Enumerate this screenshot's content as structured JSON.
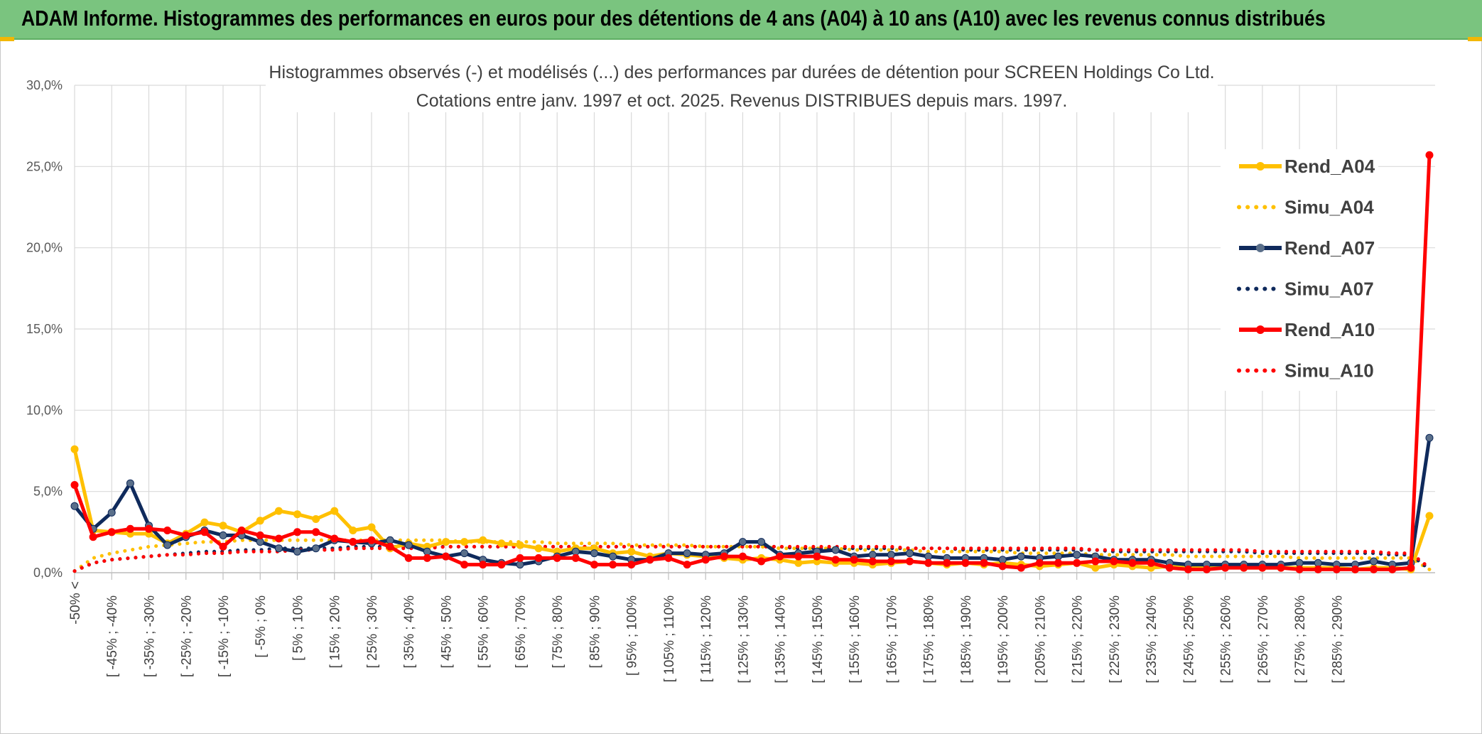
{
  "header": {
    "title": "ADAM Informe. Histogrammes des performances en euros pour des détentions de 4 ans (A04) à 10 ans (A10) avec les revenus connus distribués"
  },
  "colors": {
    "banner": "#7ac47f",
    "A04": "#ffc000",
    "A07": "#0f2a5c",
    "A07_marker": "#5a6f8a",
    "A10": "#ff0000"
  },
  "chart_data": {
    "type": "line",
    "title_line1": "Histogrammes observés (-) et modélisés (...) des performances par durées de détention pour SCREEN Holdings Co Ltd.",
    "title_line2": "Cotations entre janv. 1997 et oct. 2025. Revenus DISTRIBUES depuis mars. 1997.",
    "ylim": [
      0,
      30
    ],
    "yticks": [
      "0,0%",
      "5,0%",
      "10,0%",
      "15,0%",
      "20,0%",
      "25,0%",
      "30,0%"
    ],
    "grid": true,
    "legend_position": "right",
    "x_labels": [
      "-50% <",
      "[ -45% ; -40%",
      "[ -35% ; -30%",
      "[ -25% ; -20%",
      "[ -15% ; -10%",
      "[ -5% ; 0%",
      "[ 5% ; 10%",
      "[ 15% ; 20%",
      "[ 25% ; 30%",
      "[ 35% ; 40%",
      "[ 45% ; 50%",
      "[ 55% ; 60%",
      "[ 65% ; 70%",
      "[ 75% ; 80%",
      "[ 85% ; 90%",
      "[ 95% ; 100%",
      "[ 105% ; 110%",
      "[ 115% ; 120%",
      "[ 125% ; 130%",
      "[ 135% ; 140%",
      "[ 145% ; 150%",
      "[ 155% ; 160%",
      "[ 165% ; 170%",
      "[ 175% ; 180%",
      "[ 185% ; 190%",
      "[ 195% ; 200%",
      "[ 205% ; 210%",
      "[ 215% ; 220%",
      "[ 225% ; 230%",
      "[ 235% ; 240%",
      "[ 245% ; 250%",
      "[ 255% ; 260%",
      "[ 265% ; 270%",
      "[ 275% ; 280%",
      "[ 285% ; 290%"
    ],
    "series": [
      {
        "name": "Rend_A04",
        "style": "solid",
        "color": "#ffc000",
        "values": [
          7.6,
          2.6,
          2.5,
          2.4,
          2.4,
          1.8,
          2.4,
          3.1,
          2.9,
          2.5,
          3.2,
          3.8,
          3.6,
          3.3,
          3.8,
          2.6,
          2.8,
          1.5,
          1.8,
          1.6,
          1.9,
          1.9,
          2.0,
          1.8,
          1.7,
          1.5,
          1.3,
          1.5,
          1.5,
          1.2,
          1.3,
          1.0,
          1.2,
          1.1,
          1.0,
          0.9,
          0.8,
          0.9,
          0.8,
          0.6,
          0.7,
          0.6,
          0.6,
          0.5,
          0.6,
          0.7,
          0.6,
          0.5,
          0.6,
          0.5,
          0.6,
          0.5,
          0.4,
          0.5,
          0.6,
          0.3,
          0.5,
          0.4,
          0.3,
          0.4,
          0.3,
          0.3,
          0.4,
          0.3,
          0.3,
          0.3,
          0.3,
          0.3,
          0.3,
          0.2,
          0.3,
          0.3,
          0.2,
          3.5
        ]
      },
      {
        "name": "Simu_A04",
        "style": "dotted",
        "color": "#ffc000",
        "values": [
          0.1,
          0.9,
          1.2,
          1.4,
          1.6,
          1.7,
          1.8,
          1.9,
          1.9,
          2.0,
          2.0,
          2.0,
          2.0,
          2.0,
          2.0,
          2.0,
          2.0,
          2.0,
          2.0,
          2.0,
          2.0,
          1.9,
          1.9,
          1.9,
          1.9,
          1.9,
          1.8,
          1.8,
          1.8,
          1.8,
          1.7,
          1.7,
          1.7,
          1.7,
          1.6,
          1.6,
          1.6,
          1.6,
          1.5,
          1.5,
          1.5,
          1.5,
          1.4,
          1.4,
          1.4,
          1.4,
          1.3,
          1.3,
          1.3,
          1.3,
          1.3,
          1.2,
          1.2,
          1.2,
          1.2,
          1.1,
          1.1,
          1.1,
          1.1,
          1.1,
          1.0,
          1.0,
          1.0,
          1.0,
          1.0,
          1.0,
          0.9,
          0.9,
          0.9,
          0.9,
          0.9,
          0.9,
          0.9,
          0.2
        ]
      },
      {
        "name": "Rend_A07",
        "style": "solid",
        "color": "#0f2a5c",
        "values": [
          4.1,
          2.7,
          3.7,
          5.5,
          2.9,
          1.7,
          2.2,
          2.6,
          2.3,
          2.3,
          1.9,
          1.5,
          1.3,
          1.5,
          2.0,
          1.9,
          1.8,
          2.0,
          1.7,
          1.3,
          1.0,
          1.2,
          0.8,
          0.6,
          0.5,
          0.7,
          1.0,
          1.3,
          1.2,
          1.0,
          0.8,
          0.8,
          1.2,
          1.2,
          1.1,
          1.2,
          1.9,
          1.9,
          1.1,
          1.2,
          1.3,
          1.4,
          1.0,
          1.1,
          1.1,
          1.2,
          1.0,
          0.9,
          0.9,
          0.9,
          0.8,
          1.0,
          0.9,
          1.0,
          1.1,
          1.0,
          0.8,
          0.8,
          0.8,
          0.6,
          0.5,
          0.5,
          0.5,
          0.5,
          0.5,
          0.5,
          0.6,
          0.6,
          0.5,
          0.5,
          0.7,
          0.5,
          0.6,
          8.3
        ]
      },
      {
        "name": "Simu_A07",
        "style": "dotted",
        "color": "#0f2a5c",
        "values": [
          0.1,
          0.6,
          0.8,
          0.9,
          1.0,
          1.1,
          1.2,
          1.3,
          1.3,
          1.4,
          1.4,
          1.5,
          1.5,
          1.5,
          1.5,
          1.6,
          1.6,
          1.6,
          1.6,
          1.6,
          1.6,
          1.6,
          1.6,
          1.6,
          1.6,
          1.6,
          1.6,
          1.6,
          1.6,
          1.6,
          1.6,
          1.6,
          1.6,
          1.6,
          1.6,
          1.6,
          1.6,
          1.6,
          1.6,
          1.5,
          1.5,
          1.5,
          1.5,
          1.5,
          1.5,
          1.5,
          1.5,
          1.5,
          1.4,
          1.4,
          1.4,
          1.4,
          1.4,
          1.4,
          1.4,
          1.4,
          1.3,
          1.3,
          1.3,
          1.3,
          1.3,
          1.3,
          1.3,
          1.3,
          1.2,
          1.2,
          1.2,
          1.2,
          1.2,
          1.2,
          1.2,
          1.1,
          1.1,
          0.2
        ]
      },
      {
        "name": "Rend_A10",
        "style": "solid",
        "color": "#ff0000",
        "values": [
          5.4,
          2.2,
          2.5,
          2.7,
          2.7,
          2.6,
          2.3,
          2.5,
          1.6,
          2.6,
          2.3,
          2.1,
          2.5,
          2.5,
          2.1,
          1.9,
          2.0,
          1.6,
          0.9,
          0.9,
          1.0,
          0.5,
          0.5,
          0.5,
          0.9,
          0.9,
          0.9,
          0.9,
          0.5,
          0.5,
          0.5,
          0.8,
          0.9,
          0.5,
          0.8,
          1.0,
          1.0,
          0.7,
          1.0,
          1.0,
          1.0,
          0.8,
          0.8,
          0.7,
          0.7,
          0.7,
          0.6,
          0.6,
          0.6,
          0.6,
          0.4,
          0.3,
          0.6,
          0.6,
          0.6,
          0.7,
          0.7,
          0.6,
          0.6,
          0.3,
          0.2,
          0.2,
          0.3,
          0.3,
          0.3,
          0.3,
          0.2,
          0.2,
          0.2,
          0.2,
          0.2,
          0.2,
          0.3,
          25.7
        ]
      },
      {
        "name": "Simu_A10",
        "style": "dotted",
        "color": "#ff0000",
        "values": [
          0.1,
          0.6,
          0.8,
          0.9,
          1.0,
          1.1,
          1.1,
          1.2,
          1.2,
          1.3,
          1.3,
          1.3,
          1.4,
          1.4,
          1.4,
          1.5,
          1.5,
          1.5,
          1.5,
          1.5,
          1.6,
          1.6,
          1.6,
          1.6,
          1.6,
          1.6,
          1.6,
          1.6,
          1.6,
          1.6,
          1.6,
          1.6,
          1.6,
          1.6,
          1.6,
          1.6,
          1.6,
          1.6,
          1.6,
          1.6,
          1.6,
          1.6,
          1.6,
          1.6,
          1.6,
          1.5,
          1.5,
          1.5,
          1.5,
          1.5,
          1.5,
          1.5,
          1.5,
          1.5,
          1.5,
          1.4,
          1.4,
          1.4,
          1.4,
          1.4,
          1.4,
          1.4,
          1.4,
          1.4,
          1.3,
          1.3,
          1.3,
          1.3,
          1.3,
          1.3,
          1.3,
          1.2,
          1.2,
          0.3
        ]
      }
    ]
  }
}
